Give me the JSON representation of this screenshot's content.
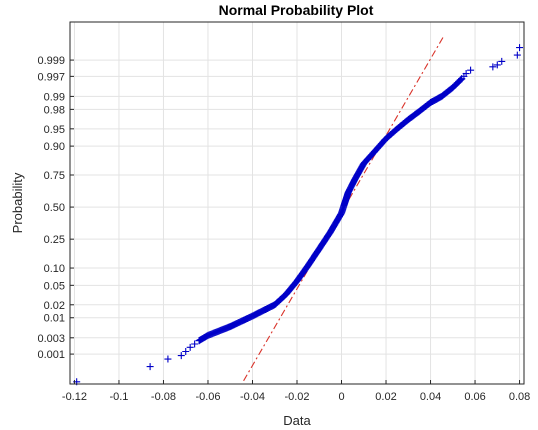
{
  "chart_data": {
    "type": "scatter",
    "title": "Normal Probability Plot",
    "xlabel": "Data",
    "ylabel": "Probability",
    "xlim": [
      -0.122,
      0.082
    ],
    "x_ticks": [
      -0.12,
      -0.1,
      -0.08,
      -0.06,
      -0.04,
      -0.02,
      0,
      0.02,
      0.04,
      0.06,
      0.08
    ],
    "x_tick_labels": [
      "-0.12",
      "-0.1",
      "-0.08",
      "-0.06",
      "-0.04",
      "-0.02",
      "0",
      "0.02",
      "0.04",
      "0.06",
      "0.08"
    ],
    "y_ticks": [
      0.001,
      0.003,
      0.01,
      0.02,
      0.05,
      0.1,
      0.25,
      0.5,
      0.75,
      0.9,
      0.95,
      0.98,
      0.99,
      0.997,
      0.999
    ],
    "y_tick_labels": [
      "0.001",
      "0.003",
      "0.01",
      "0.02",
      "0.05",
      "0.10",
      "0.25",
      "0.50",
      "0.75",
      "0.90",
      "0.95",
      "0.98",
      "0.99",
      "0.997",
      "0.999"
    ],
    "y_scale": "normal-probability",
    "grid": true,
    "reference_line": {
      "points": [
        [
          -0.044,
          0.00013
        ],
        [
          0.046,
          0.99984
        ]
      ]
    },
    "outlier_points": [
      [
        -0.119,
        0.00012
      ],
      [
        -0.086,
        0.0004
      ],
      [
        -0.078,
        0.0007
      ],
      [
        -0.072,
        0.0009
      ],
      [
        -0.07,
        0.0012
      ],
      [
        -0.068,
        0.0016
      ],
      [
        -0.066,
        0.002
      ],
      [
        -0.064,
        0.0025
      ],
      [
        0.054,
        0.9965
      ],
      [
        0.055,
        0.997
      ],
      [
        0.056,
        0.9975
      ],
      [
        0.058,
        0.998
      ],
      [
        0.068,
        0.9984
      ],
      [
        0.07,
        0.9986
      ],
      [
        0.072,
        0.9989
      ],
      [
        0.079,
        0.9993
      ],
      [
        0.08,
        0.9996
      ]
    ],
    "curve_control_points": [
      [
        -0.064,
        0.0025
      ],
      [
        -0.06,
        0.0035
      ],
      [
        -0.05,
        0.006
      ],
      [
        -0.04,
        0.011
      ],
      [
        -0.03,
        0.02
      ],
      [
        -0.025,
        0.033
      ],
      [
        -0.02,
        0.06
      ],
      [
        -0.015,
        0.11
      ],
      [
        -0.01,
        0.19
      ],
      [
        -0.005,
        0.3
      ],
      [
        0,
        0.45
      ],
      [
        0.003,
        0.62
      ],
      [
        0.006,
        0.72
      ],
      [
        0.01,
        0.82
      ],
      [
        0.015,
        0.88
      ],
      [
        0.02,
        0.925
      ],
      [
        0.025,
        0.95
      ],
      [
        0.03,
        0.967
      ],
      [
        0.035,
        0.978
      ],
      [
        0.04,
        0.986
      ],
      [
        0.045,
        0.99
      ],
      [
        0.05,
        0.994
      ],
      [
        0.054,
        0.9965
      ]
    ],
    "curve_point_count": 360,
    "marker": "+",
    "marker_color": "#0000c8",
    "reference_line_color": "#d9332a"
  }
}
